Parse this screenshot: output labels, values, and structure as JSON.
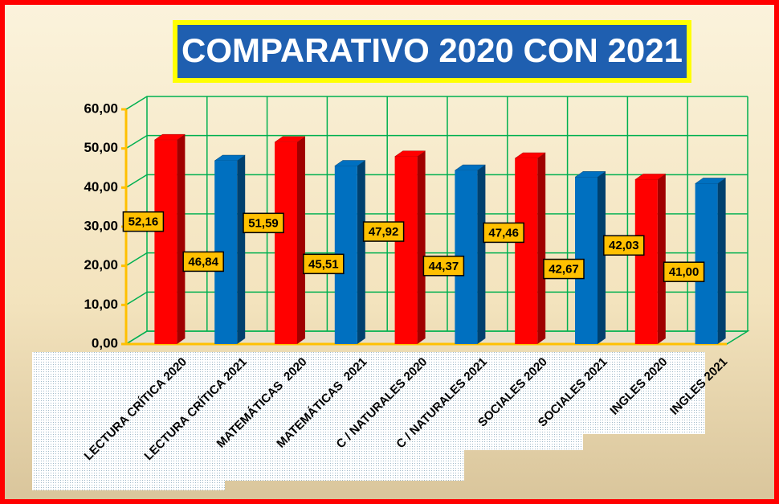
{
  "chart_data": {
    "type": "bar",
    "title": "COMPARATIVO 2020 CON 2021",
    "categories": [
      "LECTURA CRÍTICA 2020",
      "LECTURA CRÍTICA 2021",
      "MATEMÁTICAS  2020",
      "MATEMÁTICAS  2021",
      "C / NATURALES 2020",
      "C / NATURALES 2021",
      "SOCIALES 2020",
      "SOCIALES 2021",
      "INGLES 2020",
      "INGLES 2021"
    ],
    "values": [
      52.16,
      46.84,
      51.59,
      45.51,
      47.92,
      44.37,
      47.46,
      42.67,
      42.03,
      41.0
    ],
    "value_labels": [
      "52,16",
      "46,84",
      "51,59",
      "45,51",
      "47,92",
      "44,37",
      "47,46",
      "42,67",
      "42,03",
      "41,00"
    ],
    "colors": [
      "#ff0000",
      "#0070c0",
      "#ff0000",
      "#0070c0",
      "#ff0000",
      "#0070c0",
      "#ff0000",
      "#0070c0",
      "#ff0000",
      "#0070c0"
    ],
    "ylim": [
      0,
      60
    ],
    "yticks": [
      {
        "value": 0,
        "label": "0,00"
      },
      {
        "value": 10,
        "label": "10,00"
      },
      {
        "value": 20,
        "label": "20,00"
      },
      {
        "value": 30,
        "label": "30,00"
      },
      {
        "value": 40,
        "label": "40,00"
      },
      {
        "value": 50,
        "label": "50,00"
      },
      {
        "value": 60,
        "label": "60,00"
      }
    ],
    "grid": true
  }
}
